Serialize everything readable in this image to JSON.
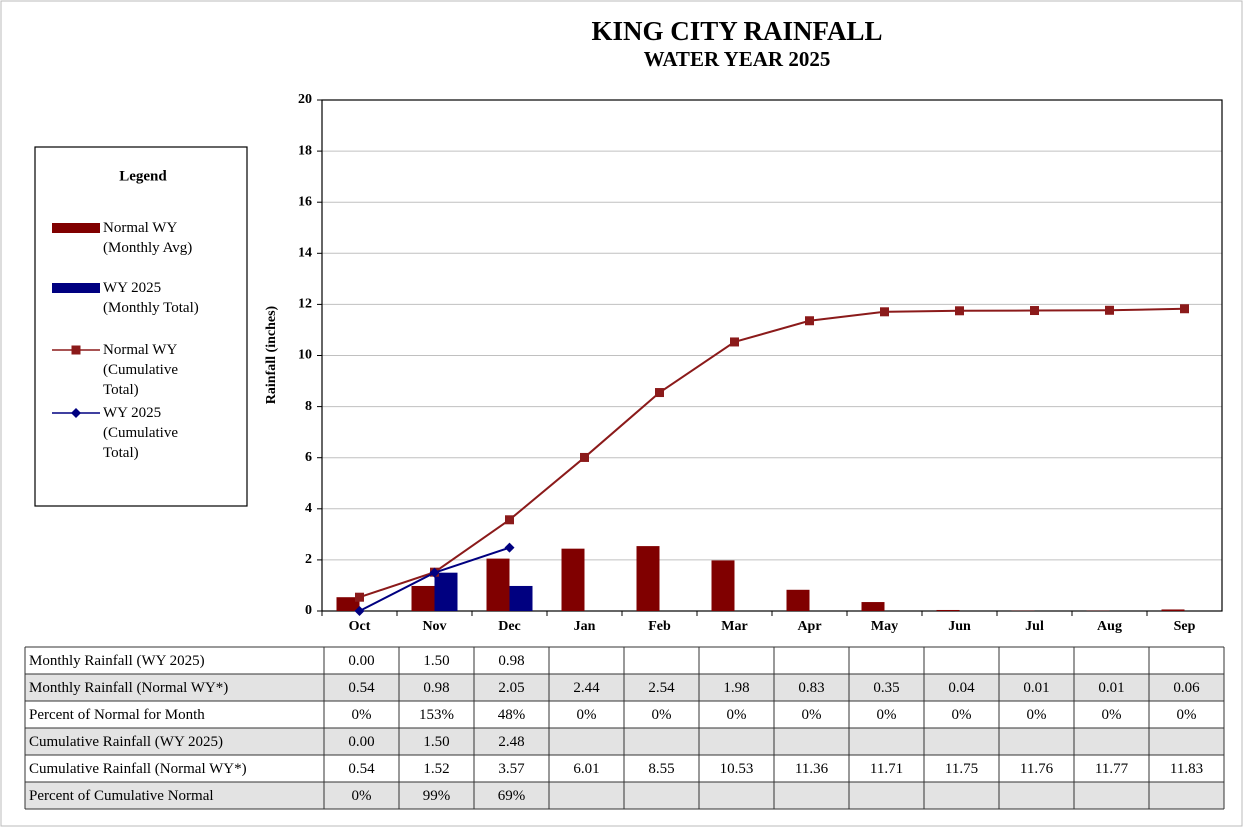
{
  "chart_data": {
    "type": "combo",
    "title": "KING CITY RAINFALL",
    "subtitle": "WATER YEAR 2025",
    "y_label": "Rainfall (inches)",
    "legend_title": "Legend",
    "legend": "left",
    "grid": true,
    "categories": [
      "Oct",
      "Nov",
      "Dec",
      "Jan",
      "Feb",
      "Mar",
      "Apr",
      "May",
      "Jun",
      "Jul",
      "Aug",
      "Sep"
    ],
    "ylim": [
      0,
      20
    ],
    "yticks": [
      0,
      2,
      4,
      6,
      8,
      10,
      12,
      14,
      16,
      18,
      20
    ],
    "series": [
      {
        "name": "Normal WY (Monthly Avg)",
        "type": "bar",
        "color": "#800000",
        "table_label": "Monthly Rainfall (Normal WY*)",
        "values": [
          0.54,
          0.98,
          2.05,
          2.44,
          2.54,
          1.98,
          0.83,
          0.35,
          0.04,
          0.01,
          0.01,
          0.06
        ],
        "value_labels": [
          "0.54",
          "0.98",
          "2.05",
          "2.44",
          "2.54",
          "1.98",
          "0.83",
          "0.35",
          "0.04",
          "0.01",
          "0.01",
          "0.06"
        ]
      },
      {
        "name": "WY 2025 (Monthly Total)",
        "type": "bar",
        "color": "#000080",
        "table_label": "Monthly Rainfall (WY 2025)",
        "values": [
          0,
          1.5,
          0.98,
          null,
          null,
          null,
          null,
          null,
          null,
          null,
          null,
          null
        ],
        "value_labels": [
          "0.00",
          "1.50",
          "0.98",
          null,
          null,
          null,
          null,
          null,
          null,
          null,
          null,
          null
        ]
      },
      {
        "name": "Normal WY (Cumulative Total)",
        "type": "line",
        "marker": "square",
        "color": "#8b1a1a",
        "table_label": "Cumulative Rainfall (Normal WY*)",
        "values": [
          0.54,
          1.52,
          3.57,
          6.01,
          8.55,
          10.53,
          11.36,
          11.71,
          11.75,
          11.76,
          11.77,
          11.83
        ],
        "value_labels": [
          "0.54",
          "1.52",
          "3.57",
          "6.01",
          "8.55",
          "10.53",
          "11.36",
          "11.71",
          "11.75",
          "11.76",
          "11.77",
          "11.83"
        ]
      },
      {
        "name": "WY 2025 (Cumulative Total)",
        "type": "line",
        "marker": "diamond",
        "color": "#000080",
        "table_label": "Cumulative Rainfall (WY 2025)",
        "values": [
          0,
          1.5,
          2.48,
          null,
          null,
          null,
          null,
          null,
          null,
          null,
          null,
          null
        ],
        "value_labels": [
          "0.00",
          "1.50",
          "2.48",
          null,
          null,
          null,
          null,
          null,
          null,
          null,
          null,
          null
        ]
      }
    ],
    "percent_rows": [
      {
        "label": "Percent of Normal for Month",
        "values": [
          0,
          153,
          48,
          0,
          0,
          0,
          0,
          0,
          0,
          0,
          0,
          0
        ],
        "value_labels": [
          "0%",
          "153%",
          "48%",
          "0%",
          "0%",
          "0%",
          "0%",
          "0%",
          "0%",
          "0%",
          "0%",
          "0%"
        ]
      },
      {
        "label": "Percent of Cumulative Normal",
        "values": [
          0,
          99,
          69,
          null,
          null,
          null,
          null,
          null,
          null,
          null,
          null,
          null
        ],
        "value_labels": [
          "0%",
          "99%",
          "69%",
          null,
          null,
          null,
          null,
          null,
          null,
          null,
          null,
          null
        ]
      }
    ]
  }
}
